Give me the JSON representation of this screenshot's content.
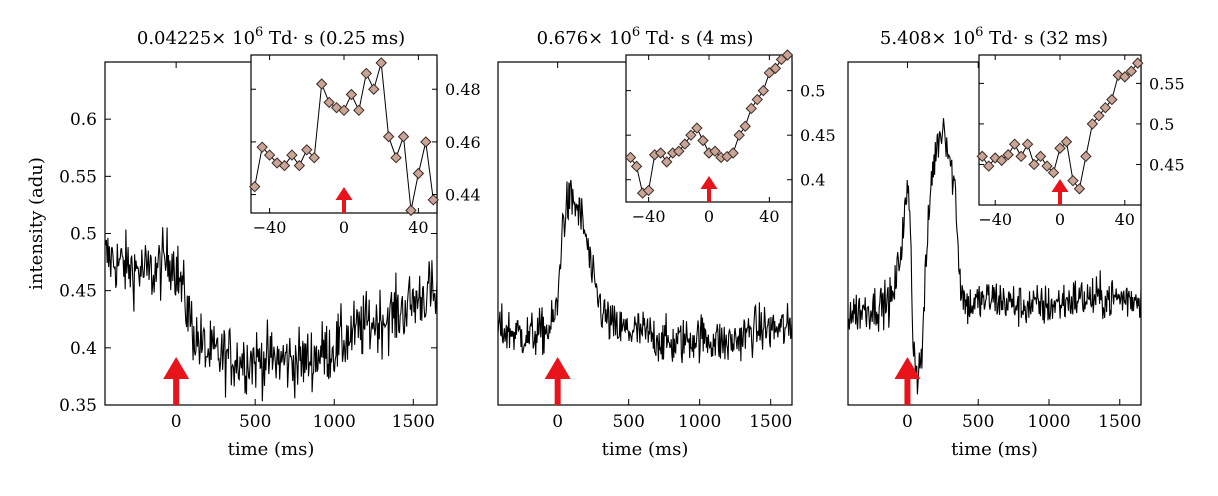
{
  "chart_data": [
    {
      "type": "line",
      "title": "0.04225× 10^6 Td· s (0.25 ms)",
      "title_parts": {
        "pre": "0.04225×",
        "base": " 10",
        "exp": "6",
        "post": " Td· s (0.25 ms)"
      },
      "xlabel": "time (ms)",
      "ylabel": "intensity (adu)",
      "xlim": [
        -450,
        1650
      ],
      "ylim": [
        0.35,
        0.65
      ],
      "xticks": [
        0,
        500,
        1000,
        1500
      ],
      "xtick_labels": [
        "0",
        "500",
        "1000",
        "1500"
      ],
      "yticks": [
        0.35,
        0.4,
        0.45,
        0.5,
        0.55,
        0.6
      ],
      "ytick_labels": [
        "0.35",
        "0.4",
        "0.45",
        "0.5",
        "0.55",
        "0.6"
      ],
      "marker": {
        "type": "arrow",
        "x": 0,
        "color": "#e8131b"
      },
      "series": [
        {
          "color": "#000000",
          "noise": 0.028,
          "x": [
            -450,
            -300,
            -150,
            -30,
            0,
            40,
            80,
            120,
            200,
            400,
            600,
            800,
            1000,
            1200,
            1400,
            1500,
            1600,
            1650
          ],
          "y": [
            0.48,
            0.47,
            0.465,
            0.48,
            0.47,
            0.45,
            0.43,
            0.41,
            0.395,
            0.39,
            0.39,
            0.388,
            0.4,
            0.42,
            0.43,
            0.44,
            0.45,
            0.44
          ]
        }
      ],
      "inset": {
        "xlim": [
          -50,
          50
        ],
        "ylim": [
          0.433,
          0.493
        ],
        "xticks": [
          -40,
          0,
          40
        ],
        "xtick_labels": [
          "−40",
          "0",
          "40"
        ],
        "yticks": [
          0.44,
          0.46,
          0.48
        ],
        "ytick_labels": [
          "0.44",
          "0.46",
          "0.48"
        ],
        "marker": {
          "type": "arrow",
          "x": 0,
          "color": "#e8131b"
        },
        "x": [
          -48,
          -44,
          -40,
          -36,
          -32,
          -28,
          -24,
          -20,
          -16,
          -12,
          -8,
          -4,
          0,
          4,
          8,
          12,
          16,
          20,
          24,
          28,
          32,
          36,
          40,
          44,
          48
        ],
        "y": [
          0.443,
          0.458,
          0.455,
          0.452,
          0.451,
          0.455,
          0.451,
          0.457,
          0.454,
          0.482,
          0.475,
          0.473,
          0.472,
          0.478,
          0.472,
          0.486,
          0.48,
          0.49,
          0.462,
          0.454,
          0.462,
          0.434,
          0.448,
          0.46,
          0.438
        ]
      }
    },
    {
      "type": "line",
      "title": "0.676× 10^6 Td· s (4 ms)",
      "title_parts": {
        "pre": "0.676×",
        "base": " 10",
        "exp": "6",
        "post": " Td· s (4 ms)"
      },
      "xlabel": "time (ms)",
      "ylabel": "",
      "xlim": [
        -420,
        1650
      ],
      "ylim": [
        0.3,
        0.75
      ],
      "xticks": [
        0,
        500,
        1000,
        1500
      ],
      "xtick_labels": [
        "0",
        "500",
        "1000",
        "1500"
      ],
      "yticks": [],
      "ytick_labels": [],
      "marker": {
        "type": "arrow",
        "x": 0,
        "color": "#e8131b"
      },
      "series": [
        {
          "color": "#000000",
          "noise": 0.03,
          "x": [
            -420,
            -200,
            -50,
            0,
            30,
            60,
            100,
            160,
            200,
            250,
            320,
            400,
            600,
            800,
            1000,
            1200,
            1400,
            1650
          ],
          "y": [
            0.4,
            0.39,
            0.4,
            0.43,
            0.53,
            0.56,
            0.57,
            0.55,
            0.52,
            0.46,
            0.42,
            0.4,
            0.395,
            0.38,
            0.39,
            0.38,
            0.4,
            0.4
          ]
        }
      ],
      "inset": {
        "xlim": [
          -55,
          55
        ],
        "ylim": [
          0.375,
          0.54
        ],
        "xticks": [
          -40,
          0,
          40
        ],
        "xtick_labels": [
          "−40",
          "0",
          "40"
        ],
        "yticks": [
          0.4,
          0.45,
          0.5
        ],
        "ytick_labels": [
          "0.4",
          "0.45",
          "0.5"
        ],
        "marker": {
          "type": "arrow",
          "x": 0,
          "color": "#e8131b"
        },
        "x": [
          -52,
          -48,
          -44,
          -40,
          -36,
          -32,
          -28,
          -24,
          -20,
          -16,
          -12,
          -8,
          -4,
          0,
          4,
          8,
          12,
          16,
          20,
          24,
          28,
          32,
          36,
          40,
          44,
          48,
          52
        ],
        "y": [
          0.425,
          0.415,
          0.385,
          0.388,
          0.428,
          0.43,
          0.42,
          0.43,
          0.432,
          0.44,
          0.45,
          0.458,
          0.444,
          0.43,
          0.432,
          0.425,
          0.426,
          0.43,
          0.45,
          0.46,
          0.48,
          0.49,
          0.5,
          0.52,
          0.525,
          0.535,
          0.54
        ]
      }
    },
    {
      "type": "line",
      "title": "5.408× 10^6 Td· s (32 ms)",
      "title_parts": {
        "pre": "5.408×",
        "base": " 10",
        "exp": "6",
        "post": " Td· s (32 ms)"
      },
      "xlabel": "time (ms)",
      "ylabel": "",
      "xlim": [
        -420,
        1650
      ],
      "ylim": [
        0.3,
        0.75
      ],
      "xticks": [
        0,
        500,
        1000,
        1500
      ],
      "xtick_labels": [
        "0",
        "500",
        "1000",
        "1500"
      ],
      "yticks": [],
      "ytick_labels": [],
      "marker": {
        "type": "arrow",
        "x": 0,
        "color": "#e8131b"
      },
      "series": [
        {
          "color": "#000000",
          "noise": 0.028,
          "x": [
            -420,
            -200,
            -100,
            -50,
            0,
            20,
            40,
            70,
            100,
            130,
            170,
            220,
            260,
            300,
            340,
            360,
            380,
            420,
            600,
            800,
            1000,
            1200,
            1400,
            1650
          ],
          "y": [
            0.42,
            0.43,
            0.44,
            0.5,
            0.58,
            0.55,
            0.38,
            0.34,
            0.36,
            0.48,
            0.6,
            0.65,
            0.67,
            0.62,
            0.58,
            0.5,
            0.45,
            0.43,
            0.44,
            0.43,
            0.43,
            0.44,
            0.44,
            0.44
          ]
        }
      ],
      "inset": {
        "xlim": [
          -50,
          50
        ],
        "ylim": [
          0.4,
          0.585
        ],
        "xticks": [
          -40,
          0,
          40
        ],
        "xtick_labels": [
          "−40",
          "0",
          "40"
        ],
        "yticks": [
          0.45,
          0.5,
          0.55
        ],
        "ytick_labels": [
          "0.45",
          "0.5",
          "0.55"
        ],
        "marker": {
          "type": "arrow",
          "x": 0,
          "color": "#e8131b"
        },
        "x": [
          -48,
          -44,
          -40,
          -36,
          -32,
          -28,
          -24,
          -20,
          -16,
          -12,
          -8,
          -4,
          0,
          4,
          8,
          12,
          16,
          20,
          24,
          28,
          32,
          36,
          40,
          44,
          48
        ],
        "y": [
          0.46,
          0.448,
          0.458,
          0.455,
          0.462,
          0.475,
          0.46,
          0.475,
          0.45,
          0.46,
          0.448,
          0.44,
          0.47,
          0.478,
          0.43,
          0.42,
          0.46,
          0.5,
          0.51,
          0.52,
          0.53,
          0.56,
          0.558,
          0.565,
          0.575
        ]
      }
    }
  ]
}
